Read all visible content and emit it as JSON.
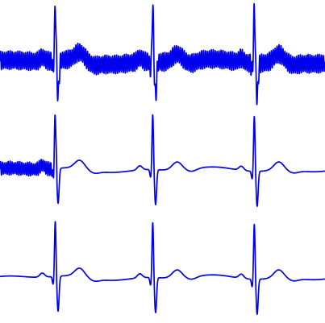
{
  "chart_data": {
    "type": "line",
    "title": "",
    "xlabel": "",
    "ylabel": "",
    "grid": false,
    "legend": "none",
    "line_color": "#0000ee",
    "background_color": "#ffffff",
    "x_range": [
      0,
      4
    ],
    "y_range": [
      -1,
      1.6
    ],
    "beat_times": [
      0.68,
      1.88,
      3.13
    ],
    "panels": [
      {
        "series": [
          {
            "baseline": 0.1,
            "r_amplitude": 1.35,
            "noise_amplitude": 0.42,
            "noise_extent": [
              0.0,
              4.0
            ]
          }
        ]
      },
      {
        "series": [
          {
            "baseline": 0.1,
            "r_amplitude": 1.35,
            "noise_amplitude": 0.3,
            "noise_extent": [
              0.0,
              0.7
            ]
          }
        ]
      },
      {
        "series": [
          {
            "baseline": 0.1,
            "r_amplitude": 1.35,
            "noise_amplitude": 0.0,
            "noise_extent": [
              0.0,
              0.0
            ]
          }
        ]
      }
    ]
  }
}
